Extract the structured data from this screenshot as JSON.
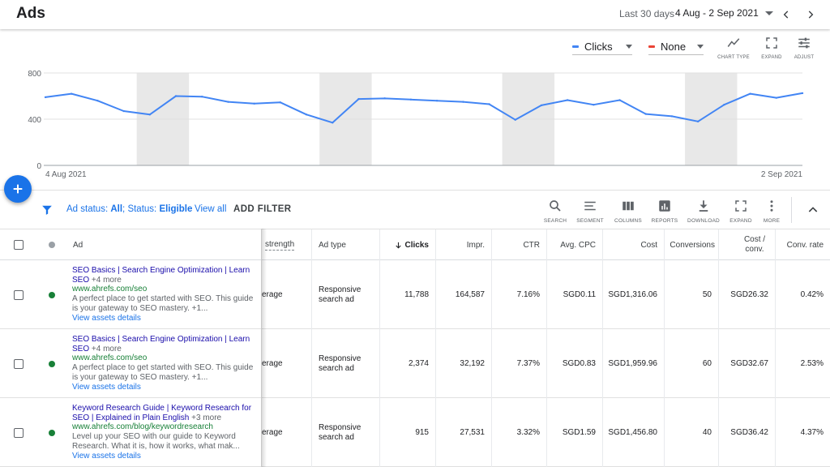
{
  "header": {
    "title": "Ads",
    "date_label": "Last 30 days",
    "date_range": "4 Aug - 2 Sep 2021"
  },
  "chart_controls": {
    "metric1": {
      "label": "Clicks",
      "color": "#4285f4"
    },
    "metric2": {
      "label": "None",
      "color": "#ea4335"
    },
    "tools": [
      {
        "label": "CHART TYPE",
        "icon": "line-chart-icon"
      },
      {
        "label": "EXPAND",
        "icon": "expand-icon"
      },
      {
        "label": "ADJUST",
        "icon": "adjust-icon"
      }
    ]
  },
  "chart_data": {
    "type": "line",
    "ylim": [
      0,
      800
    ],
    "yticks": [
      "0",
      "400",
      "800"
    ],
    "x_start_label": "4 Aug 2021",
    "x_end_label": "2 Sep 2021",
    "grid": true,
    "line_color": "#4285f4",
    "weekend_band_color": "#e8e8e8",
    "weekend_bands": [
      [
        4,
        5
      ],
      [
        11,
        12
      ],
      [
        18,
        19
      ],
      [
        25,
        26
      ]
    ],
    "series": [
      {
        "values": [
          590,
          620,
          560,
          470,
          440,
          600,
          595,
          550,
          535,
          545,
          440,
          370,
          575,
          580,
          570,
          560,
          550,
          530,
          395,
          520,
          565,
          525,
          565,
          445,
          425,
          380,
          525,
          620,
          585,
          625
        ]
      }
    ]
  },
  "filter_bar": {
    "status_prefix": "Ad status: ",
    "status_value": "All",
    "status_sep": "; ",
    "status2_prefix": "Status: ",
    "status2_value": "Eligible",
    "view_all": "View all",
    "add_filter": "ADD FILTER",
    "tools": [
      {
        "label": "SEARCH",
        "icon": "search-icon"
      },
      {
        "label": "SEGMENT",
        "icon": "segment-icon"
      },
      {
        "label": "COLUMNS",
        "icon": "columns-icon"
      },
      {
        "label": "REPORTS",
        "icon": "reports-icon"
      },
      {
        "label": "DOWNLOAD",
        "icon": "download-icon"
      },
      {
        "label": "EXPAND",
        "icon": "expand-icon"
      },
      {
        "label": "MORE",
        "icon": "more-vert-icon"
      }
    ]
  },
  "table": {
    "columns": {
      "ad": "Ad",
      "ad_strength": "strength",
      "ad_type": "Ad type",
      "clicks": "Clicks",
      "impr": "Impr.",
      "ctr": "CTR",
      "avg_cpc": "Avg. CPC",
      "cost": "Cost",
      "conversions": "Conversions",
      "cost_conv": "Cost / conv.",
      "conv_rate": "Conv. rate"
    },
    "rows": [
      {
        "headline": "SEO Basics | Search Engine Optimization | Learn SEO",
        "more": "+4 more",
        "url": "www.ahrefs.com/seo",
        "description": "A perfect place to get started with SEO. This guide is your gateway to SEO mastery.",
        "desc_more": "+1...",
        "assets_link": "View assets details",
        "ad_strength": "erage",
        "ad_type": "Responsive search ad",
        "clicks": "11,788",
        "impr": "164,587",
        "ctr": "7.16%",
        "avg_cpc": "SGD0.11",
        "cost": "SGD1,316.06",
        "conversions": "50",
        "cost_conv": "SGD26.32",
        "conv_rate": "0.42%"
      },
      {
        "headline": "SEO Basics | Search Engine Optimization | Learn SEO",
        "more": "+4 more",
        "url": "www.ahrefs.com/seo",
        "description": "A perfect place to get started with SEO. This guide is your gateway to SEO mastery.",
        "desc_more": "+1...",
        "assets_link": "View assets details",
        "ad_strength": "erage",
        "ad_type": "Responsive search ad",
        "clicks": "2,374",
        "impr": "32,192",
        "ctr": "7.37%",
        "avg_cpc": "SGD0.83",
        "cost": "SGD1,959.96",
        "conversions": "60",
        "cost_conv": "SGD32.67",
        "conv_rate": "2.53%"
      },
      {
        "headline": "Keyword Research Guide | Keyword Research for SEO | Explained in Plain English",
        "more": "+3 more",
        "url": "www.ahrefs.com/blog/keywordresearch",
        "description": "Level up your SEO with our guide to Keyword Research. What it is, how it works, what mak...",
        "desc_more": "",
        "assets_link": "View assets details",
        "ad_strength": "erage",
        "ad_type": "Responsive search ad",
        "clicks": "915",
        "impr": "27,531",
        "ctr": "3.32%",
        "avg_cpc": "SGD1.59",
        "cost": "SGD1,456.80",
        "conversions": "40",
        "cost_conv": "SGD36.42",
        "conv_rate": "4.37%"
      }
    ],
    "status_color": "#188038"
  }
}
